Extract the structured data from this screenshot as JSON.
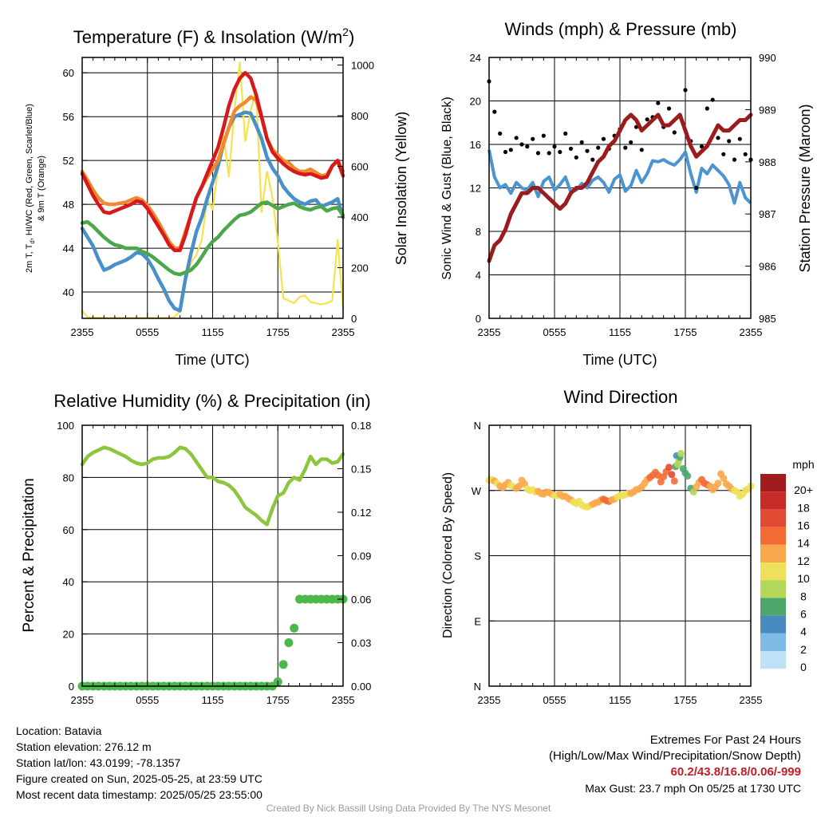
{
  "colors": {
    "t2m": "#d7191c",
    "dewpoint": "#4aa84a",
    "heat_index": "#4a90c8",
    "t9m": "#f08a2c",
    "solar": "#f6e24a",
    "wind": "#4a94d0",
    "gust": "#000000",
    "pressure": "#9b1c1c",
    "rh": "#8cc63f",
    "precip": "#4cb84c",
    "extremes": "#c0202a",
    "credit": "#9a9a9a"
  },
  "x_tick_labels": [
    "2355",
    "0555",
    "1155",
    "1755",
    "2355"
  ],
  "chart_data": [
    {
      "id": "temperature",
      "type": "line",
      "title": "Temperature (F) & Insolation (W/m",
      "title_superscript": "2",
      "title_close": ")",
      "xlabel": "Time (UTC)",
      "ylabel_line1": "2m T, T",
      "ylabel_sub": "d",
      "ylabel_line1_rest": ", HI/WC (Red, Green, Scarlet/Blue)",
      "ylabel_line2": "& 9m T (Orange)",
      "y2label": "Solar Insolation (Yellow)",
      "x": [
        0,
        0.5,
        1,
        1.5,
        2,
        2.5,
        3,
        3.5,
        4,
        4.5,
        5,
        5.5,
        6,
        6.5,
        7,
        7.5,
        8,
        8.5,
        9,
        9.5,
        10,
        10.5,
        11,
        11.5,
        12,
        12.5,
        13,
        13.5,
        14,
        14.5,
        15,
        15.5,
        16,
        16.5,
        17,
        17.5,
        18,
        18.5,
        19,
        19.5,
        20,
        20.5,
        21,
        21.5,
        22,
        22.5,
        23,
        23.5,
        24
      ],
      "xlim": [
        0,
        24
      ],
      "ylim": [
        37.6,
        61.4
      ],
      "yticks": [
        40,
        44,
        48,
        52,
        56,
        60
      ],
      "y2lim": [
        0,
        1030
      ],
      "y2ticks": [
        0,
        200,
        400,
        600,
        800,
        1000
      ],
      "series": [
        {
          "key": "t9m",
          "axis": "left",
          "values": [
            51,
            50.2,
            49.3,
            48.6,
            48.1,
            48,
            48,
            48.1,
            48.2,
            48.4,
            48.6,
            48.4,
            47.9,
            47.2,
            46.4,
            45.5,
            44.6,
            44,
            44,
            45.5,
            47,
            48.6,
            49.6,
            50.5,
            51.2,
            52,
            53.5,
            55,
            56.5,
            57,
            57.3,
            57.8,
            57.5,
            56,
            54,
            53,
            52.5,
            52,
            51.8,
            51.3,
            51,
            51,
            51.2,
            50.9,
            50.6,
            50.7,
            51.5,
            52,
            51
          ]
        },
        {
          "key": "t2m",
          "axis": "left",
          "values": [
            50.8,
            49.8,
            48.8,
            48,
            47.3,
            47.2,
            47.4,
            47.6,
            47.8,
            48,
            48.3,
            48.2,
            47.6,
            46.8,
            46,
            45.2,
            44.3,
            43.8,
            43.8,
            45.2,
            47,
            48.6,
            49.6,
            50.8,
            52,
            53.2,
            55,
            57,
            58.5,
            59.5,
            60,
            59.5,
            58,
            56,
            54,
            52.8,
            52.2,
            51.7,
            51.3,
            51,
            50.8,
            50.7,
            50.8,
            50.6,
            50.4,
            50.5,
            51.5,
            52,
            50.6
          ]
        },
        {
          "key": "dewpoint",
          "axis": "left",
          "values": [
            46.3,
            46.4,
            46,
            45.5,
            45,
            44.6,
            44.3,
            44.2,
            44,
            44,
            44,
            43.7,
            43.5,
            43.2,
            42.8,
            42.4,
            42,
            41.7,
            41.6,
            41.8,
            42,
            42.5,
            43.2,
            44,
            44.6,
            45,
            45.6,
            46.1,
            46.6,
            47,
            47.1,
            47.3,
            47.7,
            48.1,
            48.2,
            47.9,
            47.6,
            47.8,
            48,
            48.1,
            47.8,
            47.6,
            47.5,
            47.7,
            47.8,
            47.4,
            47.6,
            47.7,
            47
          ]
        },
        {
          "key": "heat_index",
          "axis": "left",
          "values": [
            45.8,
            45,
            44.2,
            43,
            42,
            42.2,
            42.5,
            42.7,
            42.9,
            43.2,
            43.6,
            43.5,
            43,
            42.2,
            41.2,
            40.3,
            39.2,
            38.5,
            38.3,
            41.2,
            43.5,
            45.5,
            46.8,
            48.5,
            50,
            51.5,
            53.5,
            55,
            56,
            56.2,
            56.4,
            56.3,
            55.2,
            54,
            52.3,
            51.3,
            50.6,
            49.6,
            49,
            48.5,
            48.2,
            48,
            48.3,
            48.4,
            47.8,
            48,
            48.2,
            48.5,
            46.8
          ]
        },
        {
          "key": "solar",
          "axis": "right",
          "values": [
            30,
            5,
            3,
            3,
            2,
            2,
            2,
            2,
            2,
            2,
            2,
            2,
            2,
            2,
            2,
            2,
            2,
            5,
            30,
            140,
            220,
            250,
            310,
            470,
            430,
            590,
            720,
            560,
            820,
            1010,
            700,
            820,
            900,
            420,
            580,
            480,
            300,
            80,
            70,
            60,
            85,
            90,
            65,
            60,
            55,
            60,
            70,
            310,
            40
          ]
        }
      ]
    },
    {
      "id": "winds",
      "type": "line",
      "title": "Winds (mph) & Pressure (mb)",
      "xlabel": "Time (UTC)",
      "ylabel": "Sonic Wind & Gust (Blue, Black)",
      "y2label": "Station Pressure (Maroon)",
      "x": [
        0,
        0.5,
        1,
        1.5,
        2,
        2.5,
        3,
        3.5,
        4,
        4.5,
        5,
        5.5,
        6,
        6.5,
        7,
        7.5,
        8,
        8.5,
        9,
        9.5,
        10,
        10.5,
        11,
        11.5,
        12,
        12.5,
        13,
        13.5,
        14,
        14.5,
        15,
        15.5,
        16,
        16.5,
        17,
        17.5,
        18,
        18.5,
        19,
        19.5,
        20,
        20.5,
        21,
        21.5,
        22,
        22.5,
        23,
        23.5,
        24
      ],
      "xlim": [
        0,
        24
      ],
      "ylim": [
        0,
        24
      ],
      "yticks": [
        0,
        4,
        8,
        12,
        16,
        20,
        24
      ],
      "y2lim": [
        985,
        990
      ],
      "y2ticks": [
        985,
        986,
        987,
        988,
        989,
        990
      ],
      "series": [
        {
          "key": "wind",
          "axis": "left",
          "values": [
            15.5,
            13,
            12,
            12.3,
            11.5,
            12.5,
            12,
            11.8,
            12.5,
            11.2,
            12.6,
            13,
            11.8,
            12.3,
            13,
            11.6,
            11.8,
            12.4,
            12,
            12.7,
            13,
            12.5,
            11.6,
            12.8,
            13.2,
            11.7,
            12.2,
            13.6,
            12.5,
            13.3,
            14.5,
            14.4,
            14.6,
            14.3,
            14.1,
            14.6,
            15.3,
            13.3,
            11.6,
            13.8,
            13.3,
            14.1,
            13.6,
            13.1,
            12.3,
            10.6,
            12.5,
            11.1,
            10.6
          ]
        },
        {
          "key": "pressure",
          "axis": "right",
          "values": [
            986.1,
            986.4,
            986.5,
            986.7,
            987.0,
            987.2,
            987.4,
            987.4,
            987.5,
            987.5,
            987.4,
            987.3,
            987.2,
            987.1,
            987.2,
            987.4,
            987.5,
            987.5,
            987.6,
            987.8,
            988.0,
            988.1,
            988.3,
            988.4,
            988.6,
            988.8,
            988.9,
            988.8,
            988.6,
            988.7,
            988.8,
            988.9,
            988.7,
            988.7,
            988.8,
            988.9,
            988.6,
            988.3,
            988.1,
            988.2,
            988.3,
            988.5,
            988.7,
            988.6,
            988.6,
            988.7,
            988.8,
            988.8,
            988.9
          ]
        },
        {
          "key": "gust",
          "axis": "left",
          "marker": "dot",
          "values": [
            21.8,
            19,
            17,
            15.3,
            15.5,
            16.6,
            16,
            15.8,
            16.5,
            15.2,
            16.8,
            15.2,
            15.8,
            15.3,
            17,
            15.6,
            14.8,
            16.2,
            15.4,
            14.6,
            15.7,
            16.5,
            15.6,
            16.8,
            17.4,
            15.7,
            16.2,
            17.6,
            15.5,
            18.3,
            18.5,
            19.8,
            17.6,
            19.3,
            17.1,
            18.6,
            21,
            16.3,
            12,
            15.8,
            19.3,
            20.1,
            16.6,
            15.1,
            16.3,
            14.6,
            16.5,
            15.1,
            14.6
          ]
        }
      ]
    },
    {
      "id": "humidity",
      "type": "line",
      "title": "Relative Humidity (%) & Precipitation (in)",
      "ylabel": "Percent & Precipitation",
      "x": [
        0,
        0.5,
        1,
        1.5,
        2,
        2.5,
        3,
        3.5,
        4,
        4.5,
        5,
        5.5,
        6,
        6.5,
        7,
        7.5,
        8,
        8.5,
        9,
        9.5,
        10,
        10.5,
        11,
        11.5,
        12,
        12.5,
        13,
        13.5,
        14,
        14.5,
        15,
        15.5,
        16,
        16.5,
        17,
        17.5,
        18,
        18.5,
        19,
        19.5,
        20,
        20.5,
        21,
        21.5,
        22,
        22.5,
        23,
        23.5,
        24
      ],
      "xlim": [
        0,
        24
      ],
      "ylim": [
        0,
        100
      ],
      "yticks": [
        0,
        20,
        40,
        60,
        80,
        100
      ],
      "y2lim": [
        0,
        0.18
      ],
      "y2ticks": [
        "0.00",
        "0.03",
        "0.06",
        "0.09",
        "0.12",
        "0.15",
        "0.18"
      ],
      "series": [
        {
          "key": "rh",
          "axis": "left",
          "values": [
            85,
            88,
            89.5,
            90.5,
            91.5,
            91,
            90,
            89,
            88,
            86.5,
            85.5,
            85,
            85.5,
            87,
            87.5,
            87.5,
            88,
            89.5,
            91.5,
            91,
            89,
            86,
            83,
            80,
            80,
            78.5,
            78,
            77,
            75,
            72,
            68.5,
            67,
            65.5,
            63.5,
            62,
            68,
            73,
            74,
            78,
            80,
            79,
            83,
            88,
            85,
            87,
            87,
            85.5,
            86,
            89
          ]
        },
        {
          "key": "precip",
          "axis": "right",
          "marker": "dot",
          "values": [
            0,
            0,
            0,
            0,
            0,
            0,
            0,
            0,
            0,
            0,
            0,
            0,
            0,
            0,
            0,
            0,
            0,
            0,
            0,
            0,
            0,
            0,
            0,
            0,
            0,
            0,
            0,
            0,
            0,
            0,
            0,
            0,
            0,
            0,
            0,
            0,
            0.003,
            0.015,
            0.03,
            0.04,
            0.06,
            0.06,
            0.06,
            0.06,
            0.06,
            0.06,
            0.06,
            0.06,
            0.06
          ]
        }
      ]
    },
    {
      "id": "wind_direction",
      "type": "scatter",
      "title": "Wind Direction",
      "ylabel": "Direction (Colored By Speed)",
      "xlim": [
        0,
        24
      ],
      "ylim": [
        0,
        360
      ],
      "ytick_values": [
        0,
        90,
        180,
        270,
        360
      ],
      "ytick_labels": [
        "N",
        "E",
        "S",
        "W",
        "N"
      ],
      "colorbar_title": "mph",
      "colorbar_labels": [
        "20+",
        "18",
        "16",
        "14",
        "12",
        "10",
        "8",
        "6",
        "4",
        "2",
        "0"
      ],
      "colorbar_colors": [
        "#a11c1f",
        "#c82a2a",
        "#e34a33",
        "#f26b35",
        "#f8a84c",
        "#eee05a",
        "#b3d757",
        "#4da66b",
        "#4a89c0",
        "#7fbbe5",
        "#bee2f5"
      ],
      "x": [
        0,
        0.25,
        0.5,
        0.75,
        1,
        1.25,
        1.5,
        1.75,
        2,
        2.25,
        2.5,
        2.75,
        3,
        3.25,
        3.5,
        3.75,
        4,
        4.25,
        4.5,
        4.75,
        5,
        5.25,
        5.5,
        5.75,
        6,
        6.25,
        6.5,
        6.75,
        7,
        7.25,
        7.5,
        7.75,
        8,
        8.25,
        8.5,
        8.75,
        9,
        9.25,
        9.5,
        9.75,
        10,
        10.25,
        10.5,
        10.75,
        11,
        11.25,
        11.5,
        11.75,
        12,
        12.25,
        12.5,
        12.75,
        13,
        13.25,
        13.5,
        13.75,
        14,
        14.25,
        14.5,
        14.75,
        15,
        15.25,
        15.5,
        15.75,
        16,
        16.25,
        16.5,
        16.75,
        17,
        17.1,
        17.2,
        17.3,
        17.4,
        17.5,
        17.6,
        17.8,
        18,
        18.2,
        18.5,
        18.75,
        19,
        19.25,
        19.5,
        19.75,
        20,
        20.25,
        20.5,
        20.75,
        21,
        21.25,
        21.5,
        21.75,
        22,
        22.25,
        22.5,
        22.75,
        23,
        23.25,
        23.5,
        23.75,
        24
      ],
      "y": [
        284,
        285,
        283,
        280,
        276,
        274,
        278,
        281,
        277,
        275,
        273,
        276,
        284,
        279,
        272,
        270,
        271,
        268,
        269,
        266,
        265,
        268,
        267,
        265,
        263,
        263,
        265,
        262,
        262,
        259,
        257,
        254,
        252,
        255,
        250,
        248,
        247,
        249,
        251,
        253,
        254,
        257,
        258,
        256,
        255,
        257,
        258,
        261,
        263,
        263,
        264,
        266,
        266,
        268,
        271,
        272,
        275,
        280,
        285,
        288,
        291,
        295,
        291,
        282,
        289,
        296,
        302,
        292,
        283,
        303,
        318,
        306,
        311,
        316,
        321,
        300,
        294,
        290,
        273,
        268,
        275,
        281,
        285,
        280,
        278,
        276,
        271,
        275,
        280,
        293,
        287,
        279,
        276,
        272,
        270,
        268,
        262,
        265,
        270,
        272,
        276
      ],
      "speed": [
        11,
        11,
        12,
        11,
        12,
        12,
        13,
        12,
        11,
        11,
        12,
        12,
        12,
        12,
        11,
        11,
        11,
        11,
        12,
        12,
        12,
        13,
        12,
        12,
        11,
        11,
        12,
        12,
        12,
        12,
        12,
        11,
        10,
        11,
        10,
        10,
        11,
        11,
        12,
        12,
        13,
        13,
        14,
        14,
        14,
        12,
        12,
        11,
        11,
        11,
        11,
        11,
        12,
        12,
        12,
        12,
        12,
        13,
        13,
        14,
        14,
        15,
        15,
        14,
        14,
        15,
        16,
        16,
        14,
        7,
        5,
        8,
        9,
        7,
        8,
        7,
        7,
        6,
        7,
        9,
        12,
        13,
        14,
        14,
        14,
        13,
        13,
        12,
        13,
        13,
        12,
        12,
        12,
        12,
        11,
        11,
        10,
        10,
        11,
        11,
        10
      ]
    }
  ],
  "info": {
    "location": "Location: Batavia",
    "elevation": "Station elevation: 276.12 m",
    "latlon": "Station lat/lon: 43.0199; -78.1357",
    "created": "Figure created on Sun, 2025-05-25, at 23:59 UTC",
    "recent": "Most recent data timestamp: 2025/05/25 23:55:00"
  },
  "extremes": {
    "title": "Extremes For Past 24 Hours",
    "subtitle": "(High/Low/Max Wind/Precipitation/Snow Depth)",
    "values": "60.2/43.8/16.8/0.06/-999",
    "max_gust": "Max Gust: 23.7 mph On 05/25 at 1730 UTC"
  },
  "credit": "Created By Nick Bassill Using Data Provided By The NYS Mesonet"
}
